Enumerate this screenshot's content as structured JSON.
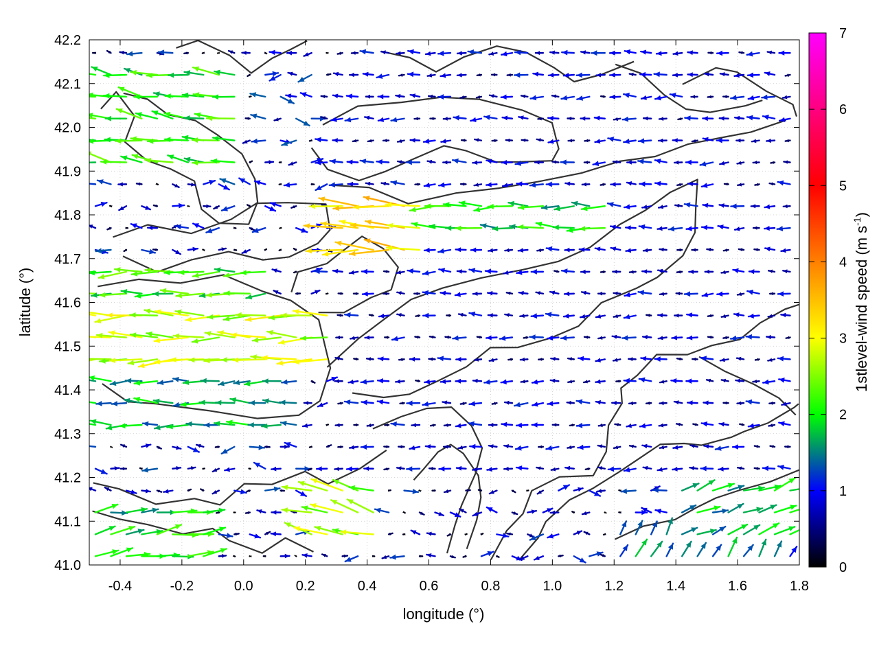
{
  "chart_data": {
    "type": "vector-field",
    "title": "",
    "xlabel": "longitude (°)",
    "ylabel": "latitude (°)",
    "xlim": [
      -0.5,
      1.8
    ],
    "ylim": [
      41.0,
      42.2
    ],
    "xticks": [
      -0.4,
      -0.2,
      0.0,
      0.2,
      0.4,
      0.6,
      0.8,
      1.0,
      1.2,
      1.4,
      1.6,
      1.8
    ],
    "xtick_labels": [
      "-0.4",
      "-0.2",
      "0.0",
      "0.2",
      "0.4",
      "0.6",
      "0.8",
      "1.0",
      "1.2",
      "1.4",
      "1.6",
      "1.8"
    ],
    "yticks": [
      41.0,
      41.1,
      41.2,
      41.3,
      41.4,
      41.5,
      41.6,
      41.7,
      41.8,
      41.9,
      42.0,
      42.1,
      42.2
    ],
    "ytick_labels": [
      "41.0",
      "41.1",
      "41.2",
      "41.3",
      "41.4",
      "41.5",
      "41.6",
      "41.7",
      "41.8",
      "41.9",
      "42.0",
      "42.1",
      "42.2"
    ],
    "grid": true,
    "colorbar": {
      "label": "1stlevel-wind speed (m s",
      "label_sup": "-1",
      "label_end": ")",
      "range": [
        0,
        7
      ],
      "ticks": [
        0,
        1,
        2,
        3,
        4,
        5,
        6,
        7
      ],
      "tick_labels": [
        "0",
        "1",
        "2",
        "3",
        "4",
        "5",
        "6",
        "7"
      ],
      "colors": [
        "#000000",
        "#0000ff",
        "#00ff00",
        "#ffff00",
        "#ff8000",
        "#ff0000",
        "#ff00ff"
      ]
    },
    "wind_regions": [
      {
        "lon": [
          -0.5,
          0.3
        ],
        "lat": [
          41.45,
          41.6
        ],
        "speed": 3.2,
        "direction_deg": 180
      },
      {
        "lon": [
          -0.5,
          0.1
        ],
        "lat": [
          41.55,
          41.68
        ],
        "speed": 2.5,
        "direction_deg": 182
      },
      {
        "lon": [
          -0.5,
          0.2
        ],
        "lat": [
          41.3,
          41.42
        ],
        "speed": 2.0,
        "direction_deg": 180
      },
      {
        "lon": [
          -0.5,
          0.0
        ],
        "lat": [
          41.9,
          42.15
        ],
        "speed": 2.4,
        "direction_deg": 170
      },
      {
        "lon": [
          0.3,
          0.6
        ],
        "lat": [
          41.7,
          41.82
        ],
        "speed": 3.8,
        "direction_deg": 178
      },
      {
        "lon": [
          0.6,
          1.2
        ],
        "lat": [
          41.75,
          41.85
        ],
        "speed": 2.2,
        "direction_deg": 180
      },
      {
        "lon": [
          0.2,
          0.45
        ],
        "lat": [
          41.05,
          41.2
        ],
        "speed": 3.0,
        "direction_deg": 165
      },
      {
        "lon": [
          -0.5,
          -0.1
        ],
        "lat": [
          41.02,
          41.15
        ],
        "speed": 2.2,
        "direction_deg": 10
      },
      {
        "lon": [
          1.4,
          1.8
        ],
        "lat": [
          41.05,
          41.18
        ],
        "speed": 2.0,
        "direction_deg": 20
      },
      {
        "lon": [
          1.2,
          1.8
        ],
        "lat": [
          41.0,
          41.08
        ],
        "speed": 1.7,
        "direction_deg": 60
      },
      {
        "lon": [
          0.3,
          1.8
        ],
        "lat": [
          41.2,
          42.2
        ],
        "speed": 0.9,
        "direction_deg": 180
      }
    ]
  }
}
